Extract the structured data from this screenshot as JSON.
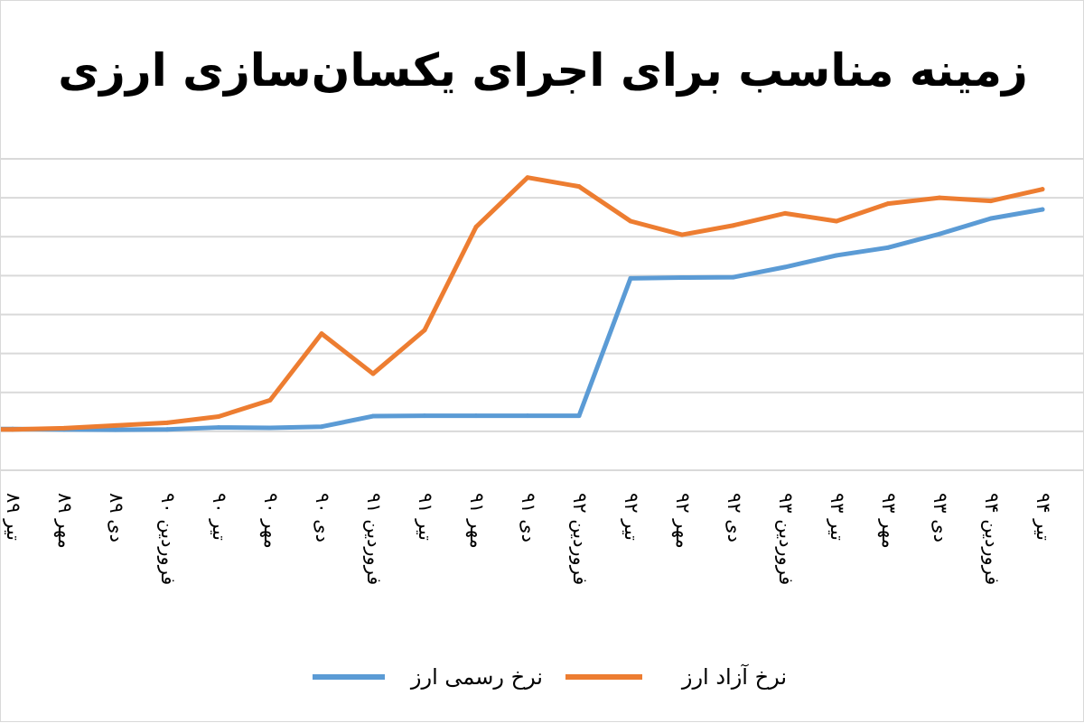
{
  "chart_data": {
    "type": "line",
    "title": "زمینه مناسب برای اجرای یکسان‌سازی ارزی",
    "xlabel": "",
    "ylabel": "",
    "ylim": [
      0,
      8
    ],
    "grid": true,
    "legend_position": "bottom",
    "tick_labels": [
      "تیر ۸۹",
      "مهر ۸۹",
      "دی ۸۹",
      "فروردین ۹۰",
      "تیر ۹۰",
      "مهر ۹۰",
      "دی ۹۰",
      "فروردین ۹۱",
      "تیر ۹۱",
      "مهر ۹۱",
      "دی ۹۱",
      "فروردین ۹۲",
      "تیر ۹۲",
      "مهر ۹۲",
      "دی ۹۲",
      "فروردین ۹۳",
      "تیر ۹۳",
      "مهر ۹۳",
      "دی ۹۳",
      "فروردین ۹۴",
      "تیر ۹۴"
    ],
    "series": [
      {
        "name": "نرخ رسمی ارز",
        "color": "#5b9bd5",
        "values": [
          1.06,
          1.05,
          1.04,
          1.05,
          1.1,
          1.09,
          1.12,
          1.39,
          1.4,
          1.4,
          1.4,
          1.4,
          4.93,
          4.95,
          4.96,
          5.22,
          5.52,
          5.72,
          6.07,
          6.47,
          6.7
        ]
      },
      {
        "name": "نرخ آزاد ارز",
        "color": "#ed7d31",
        "values": [
          1.05,
          1.08,
          1.15,
          1.22,
          1.38,
          1.8,
          3.51,
          2.48,
          3.6,
          6.25,
          7.52,
          7.29,
          6.4,
          6.05,
          6.29,
          6.6,
          6.4,
          6.85,
          7.0,
          6.92,
          7.22
        ]
      }
    ]
  }
}
